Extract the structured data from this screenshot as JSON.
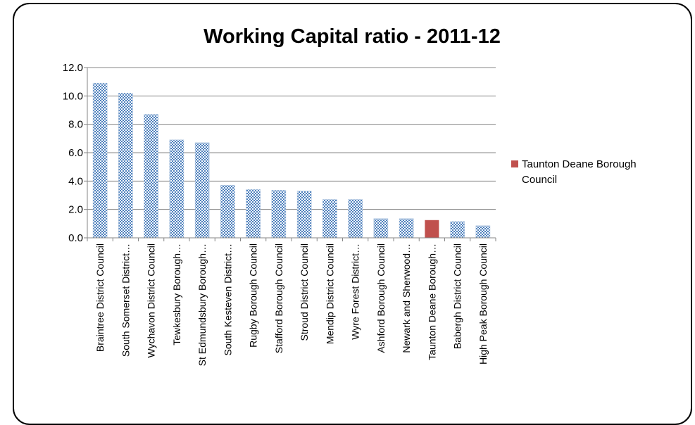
{
  "chart_data": {
    "type": "bar",
    "title": "Working Capital ratio - 2011-12",
    "xlabel": "",
    "ylabel": "",
    "ylim": [
      0,
      12
    ],
    "yticks": [
      "0.0",
      "2.0",
      "4.0",
      "6.0",
      "8.0",
      "10.0",
      "12.0"
    ],
    "grid": true,
    "legend_position": "right",
    "categories": [
      "Braintree District Council",
      "South Somerset District…",
      "Wychavon District Council",
      "Tewkesbury Borough…",
      "St Edmundsbury Borough…",
      "South Kesteven District…",
      "Rugby Borough Council",
      "Stafford Borough Council",
      "Stroud District Council",
      "Mendip District Council",
      "Wyre Forest District…",
      "Ashford Borough Council",
      "Newark and Sherwood…",
      "Taunton Deane Borough…",
      "Babergh District Council",
      "High Peak Borough Council"
    ],
    "values": [
      10.9,
      10.2,
      8.7,
      6.9,
      6.7,
      3.7,
      3.4,
      3.35,
      3.3,
      2.7,
      2.7,
      1.35,
      1.35,
      1.25,
      1.15,
      0.85
    ],
    "highlight_index": 13,
    "legend": [
      {
        "label": "Taunton Deane Borough Council",
        "lines": [
          "Taunton Deane Borough",
          "Council"
        ],
        "color": "#c0504d"
      }
    ],
    "colors": {
      "bar_pattern_a": "#4f81bd",
      "bar_pattern_b": "#ffffff",
      "highlight": "#c0504d",
      "gridline": "#868686"
    }
  }
}
